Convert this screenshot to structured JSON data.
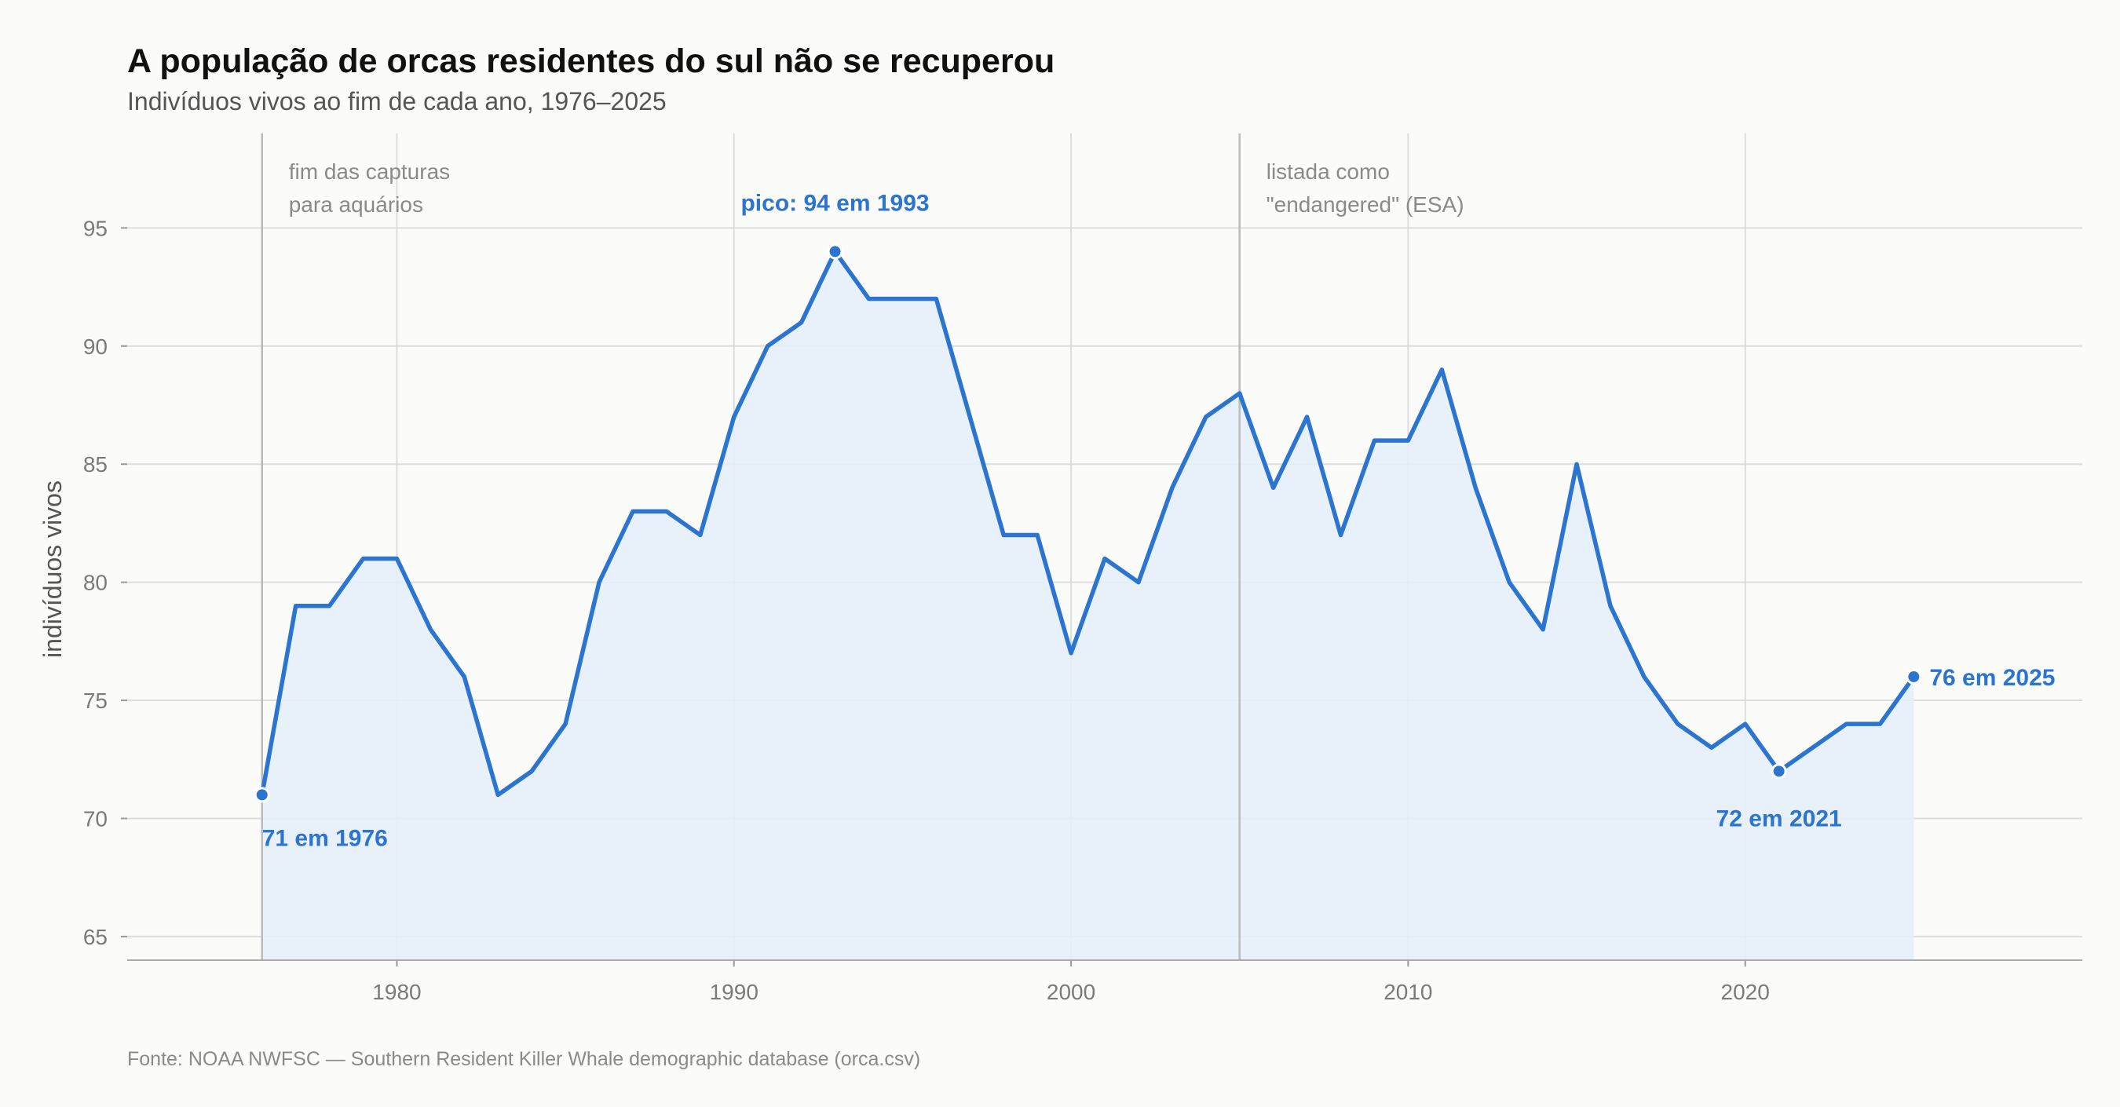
{
  "title": "A população de orcas residentes do sul não se recuperou",
  "subtitle": "Indivíduos vivos ao fim de cada ano, 1976–2025",
  "source": "Fonte: NOAA NWFSC — Southern Resident Killer Whale demographic database (orca.csv)",
  "colors": {
    "line": "#2b74d0",
    "area": "#e6eef8",
    "grid": "#dddddd",
    "event_line": "#bbbbbb",
    "background": "#fbfbf9"
  },
  "chart_data": {
    "type": "area",
    "ylabel": "indivíduos vivos",
    "xlabel": "",
    "xlim": [
      1972,
      2030
    ],
    "ylim": [
      64,
      99
    ],
    "x_ticks": [
      1980,
      1990,
      2000,
      2010,
      2020
    ],
    "y_ticks": [
      65,
      70,
      75,
      80,
      85,
      90,
      95
    ],
    "grid": true,
    "x": [
      1976,
      1977,
      1978,
      1979,
      1980,
      1981,
      1982,
      1983,
      1984,
      1985,
      1986,
      1987,
      1988,
      1989,
      1990,
      1991,
      1992,
      1993,
      1994,
      1995,
      1996,
      1997,
      1998,
      1999,
      2000,
      2001,
      2002,
      2003,
      2004,
      2005,
      2006,
      2007,
      2008,
      2009,
      2010,
      2011,
      2012,
      2013,
      2014,
      2015,
      2016,
      2017,
      2018,
      2019,
      2020,
      2021,
      2022,
      2023,
      2024,
      2025
    ],
    "values": [
      71,
      79,
      79,
      81,
      81,
      78,
      76,
      71,
      72,
      74,
      80,
      83,
      83,
      82,
      87,
      90,
      91,
      94,
      92,
      92,
      92,
      87,
      82,
      82,
      77,
      81,
      80,
      84,
      87,
      88,
      84,
      87,
      82,
      86,
      86,
      89,
      84,
      80,
      78,
      85,
      79,
      76,
      74,
      73,
      74,
      72,
      73,
      74,
      74,
      76
    ],
    "events": [
      {
        "x": 1976,
        "lines": [
          "fim das capturas",
          "para aquários"
        ]
      },
      {
        "x": 2005,
        "lines": [
          "listada como",
          "\"endangered\" (ESA)"
        ]
      }
    ],
    "annotations": [
      {
        "x": 1976,
        "y": 71,
        "text": "71 em 1976",
        "position": "below-right"
      },
      {
        "x": 1993,
        "y": 94,
        "text": "pico: 94 em 1993",
        "position": "above"
      },
      {
        "x": 2021,
        "y": 72,
        "text": "72 em 2021",
        "position": "below"
      },
      {
        "x": 2025,
        "y": 76,
        "text": "76 em 2025",
        "position": "right"
      }
    ]
  }
}
